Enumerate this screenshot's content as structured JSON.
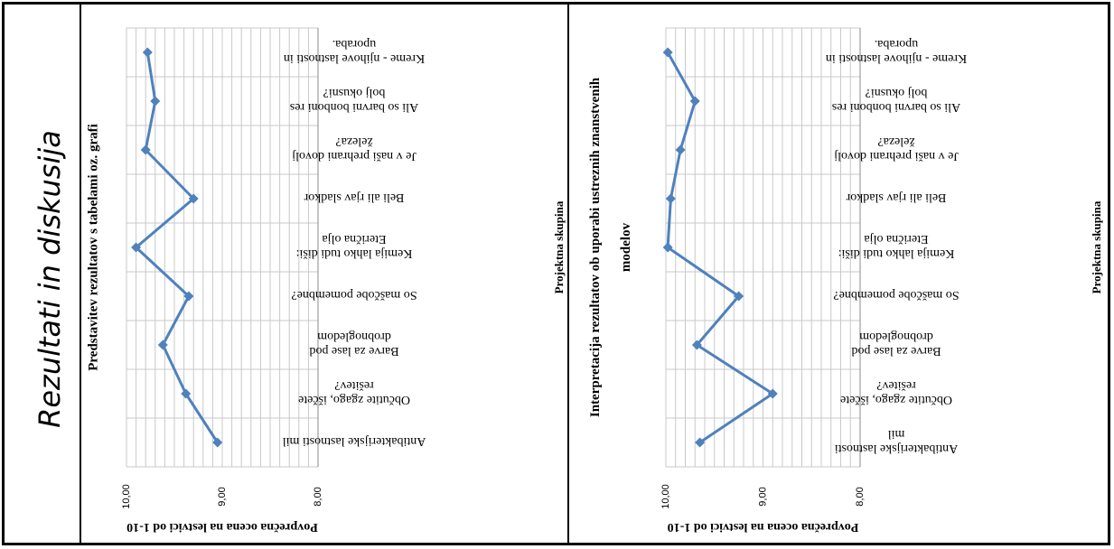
{
  "slide": {
    "side_title": "Rezultati in diskusija"
  },
  "chart_data": [
    {
      "type": "line",
      "title": "Predstavitev rezultatov s tabelami oz. grafi",
      "xlabel": "Projektna skupina",
      "ylabel": "Povprečna ocena na lestvici od 1-10",
      "ylim": [
        8.0,
        10.0
      ],
      "y_ticks": [
        "10,00",
        "9,00",
        "8,00"
      ],
      "rotation": "180",
      "color": "#4f81bd",
      "categories": [
        [
          "Antibakterijske lastnosti mil"
        ],
        [
          "Občutite zgago, iščete",
          "rešitev?"
        ],
        [
          "Barve za lase pod",
          "drobnogledom"
        ],
        [
          "So maščobe pomembne?"
        ],
        [
          "Kemija lahko tudi diši:",
          "Eterična olja"
        ],
        [
          "Beli ali rjav sladkor"
        ],
        [
          "Je v naši prehrani dovolj",
          "železa?"
        ],
        [
          "Ali so barvni bonboni res",
          "bolj okusni?"
        ],
        [
          "Kreme - njihove lastnosti in",
          "uporaba."
        ]
      ],
      "values": [
        9.05,
        9.38,
        9.62,
        9.35,
        9.9,
        9.3,
        9.8,
        9.7,
        9.78
      ]
    },
    {
      "type": "line",
      "title": "Interpretacija rezultatov ob uporabi ustreznih znanstvenih modelov",
      "xlabel": "Projektna skupina",
      "ylabel": "Povprečna ocena na lestvici od 1-10",
      "ylim": [
        8.0,
        10.0
      ],
      "y_ticks": [
        "10,00",
        "9,00",
        "8,00"
      ],
      "rotation": "180",
      "color": "#4f81bd",
      "categories": [
        [
          "Antibakterijske lastnosti",
          "mil"
        ],
        [
          "Občutite zgago, iščete",
          "rešitev?"
        ],
        [
          "Barve za lase pod",
          "drobnogledom"
        ],
        [
          "So maščobe pomembne?"
        ],
        [
          "Kemija lahko tudi diši:",
          "Eterična olja"
        ],
        [
          "Beli ali rjav sladkor"
        ],
        [
          "Je v naši prehrani dovolj",
          "železa?"
        ],
        [
          "Ali so barvni bonboni res",
          "bolj okusni?"
        ],
        [
          "Kreme - njihove lastnosti in",
          "uporaba."
        ]
      ],
      "values": [
        9.65,
        8.9,
        9.68,
        9.25,
        9.98,
        9.95,
        9.85,
        9.7,
        9.98
      ]
    }
  ]
}
